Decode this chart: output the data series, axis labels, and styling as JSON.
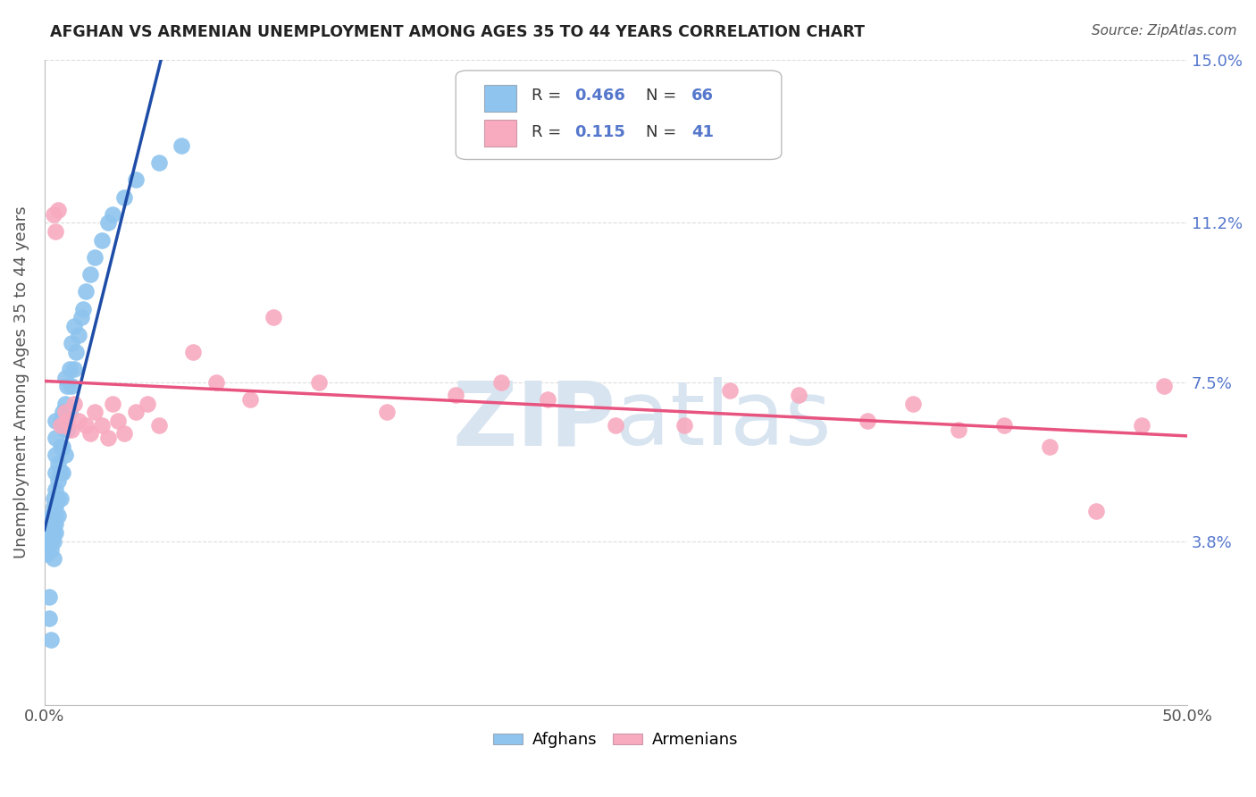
{
  "title": "AFGHAN VS ARMENIAN UNEMPLOYMENT AMONG AGES 35 TO 44 YEARS CORRELATION CHART",
  "source": "Source: ZipAtlas.com",
  "ylabel": "Unemployment Among Ages 35 to 44 years",
  "xlim": [
    0.0,
    0.5
  ],
  "ylim": [
    0.0,
    0.15
  ],
  "afghan_color": "#8EC4EE",
  "armenian_color": "#F8AABF",
  "afghan_line_color": "#1E4DA8",
  "armenian_line_color": "#E85480",
  "diagonal_color": "#AACCE8",
  "R_afghan": 0.466,
  "N_afghan": 66,
  "R_armenian": 0.115,
  "N_armenian": 41,
  "background_color": "#FFFFFF",
  "grid_color": "#DDDDDD",
  "tick_color": "#5577CC",
  "label_color": "#333333",
  "watermark_color": "#D8E4F0",
  "afghan_x": [
    0.001,
    0.001,
    0.002,
    0.002,
    0.002,
    0.002,
    0.003,
    0.003,
    0.003,
    0.003,
    0.003,
    0.004,
    0.004,
    0.004,
    0.004,
    0.004,
    0.004,
    0.004,
    0.005,
    0.005,
    0.005,
    0.005,
    0.005,
    0.005,
    0.005,
    0.005,
    0.005,
    0.006,
    0.006,
    0.006,
    0.006,
    0.007,
    0.007,
    0.007,
    0.007,
    0.008,
    0.008,
    0.008,
    0.009,
    0.009,
    0.009,
    0.009,
    0.01,
    0.01,
    0.011,
    0.011,
    0.012,
    0.012,
    0.013,
    0.013,
    0.014,
    0.015,
    0.016,
    0.017,
    0.018,
    0.02,
    0.022,
    0.025,
    0.028,
    0.03,
    0.035,
    0.04,
    0.05,
    0.06,
    0.002,
    0.003
  ],
  "afghan_y": [
    0.04,
    0.035,
    0.04,
    0.042,
    0.038,
    0.02,
    0.04,
    0.042,
    0.044,
    0.038,
    0.036,
    0.04,
    0.042,
    0.044,
    0.046,
    0.048,
    0.038,
    0.034,
    0.04,
    0.042,
    0.044,
    0.046,
    0.05,
    0.054,
    0.058,
    0.062,
    0.066,
    0.044,
    0.048,
    0.052,
    0.056,
    0.048,
    0.054,
    0.06,
    0.066,
    0.054,
    0.06,
    0.068,
    0.058,
    0.064,
    0.07,
    0.076,
    0.064,
    0.074,
    0.068,
    0.078,
    0.074,
    0.084,
    0.078,
    0.088,
    0.082,
    0.086,
    0.09,
    0.092,
    0.096,
    0.1,
    0.104,
    0.108,
    0.112,
    0.114,
    0.118,
    0.122,
    0.126,
    0.13,
    0.025,
    0.015
  ],
  "armenian_x": [
    0.004,
    0.005,
    0.006,
    0.007,
    0.009,
    0.01,
    0.012,
    0.013,
    0.015,
    0.018,
    0.02,
    0.022,
    0.025,
    0.028,
    0.03,
    0.032,
    0.035,
    0.04,
    0.045,
    0.05,
    0.065,
    0.075,
    0.09,
    0.1,
    0.12,
    0.15,
    0.18,
    0.2,
    0.22,
    0.25,
    0.28,
    0.3,
    0.33,
    0.36,
    0.38,
    0.4,
    0.42,
    0.44,
    0.46,
    0.48,
    0.49
  ],
  "armenian_y": [
    0.114,
    0.11,
    0.115,
    0.065,
    0.068,
    0.066,
    0.064,
    0.07,
    0.066,
    0.065,
    0.063,
    0.068,
    0.065,
    0.062,
    0.07,
    0.066,
    0.063,
    0.068,
    0.07,
    0.065,
    0.082,
    0.075,
    0.071,
    0.09,
    0.075,
    0.068,
    0.072,
    0.075,
    0.071,
    0.065,
    0.065,
    0.073,
    0.072,
    0.066,
    0.07,
    0.064,
    0.065,
    0.06,
    0.045,
    0.065,
    0.074
  ]
}
